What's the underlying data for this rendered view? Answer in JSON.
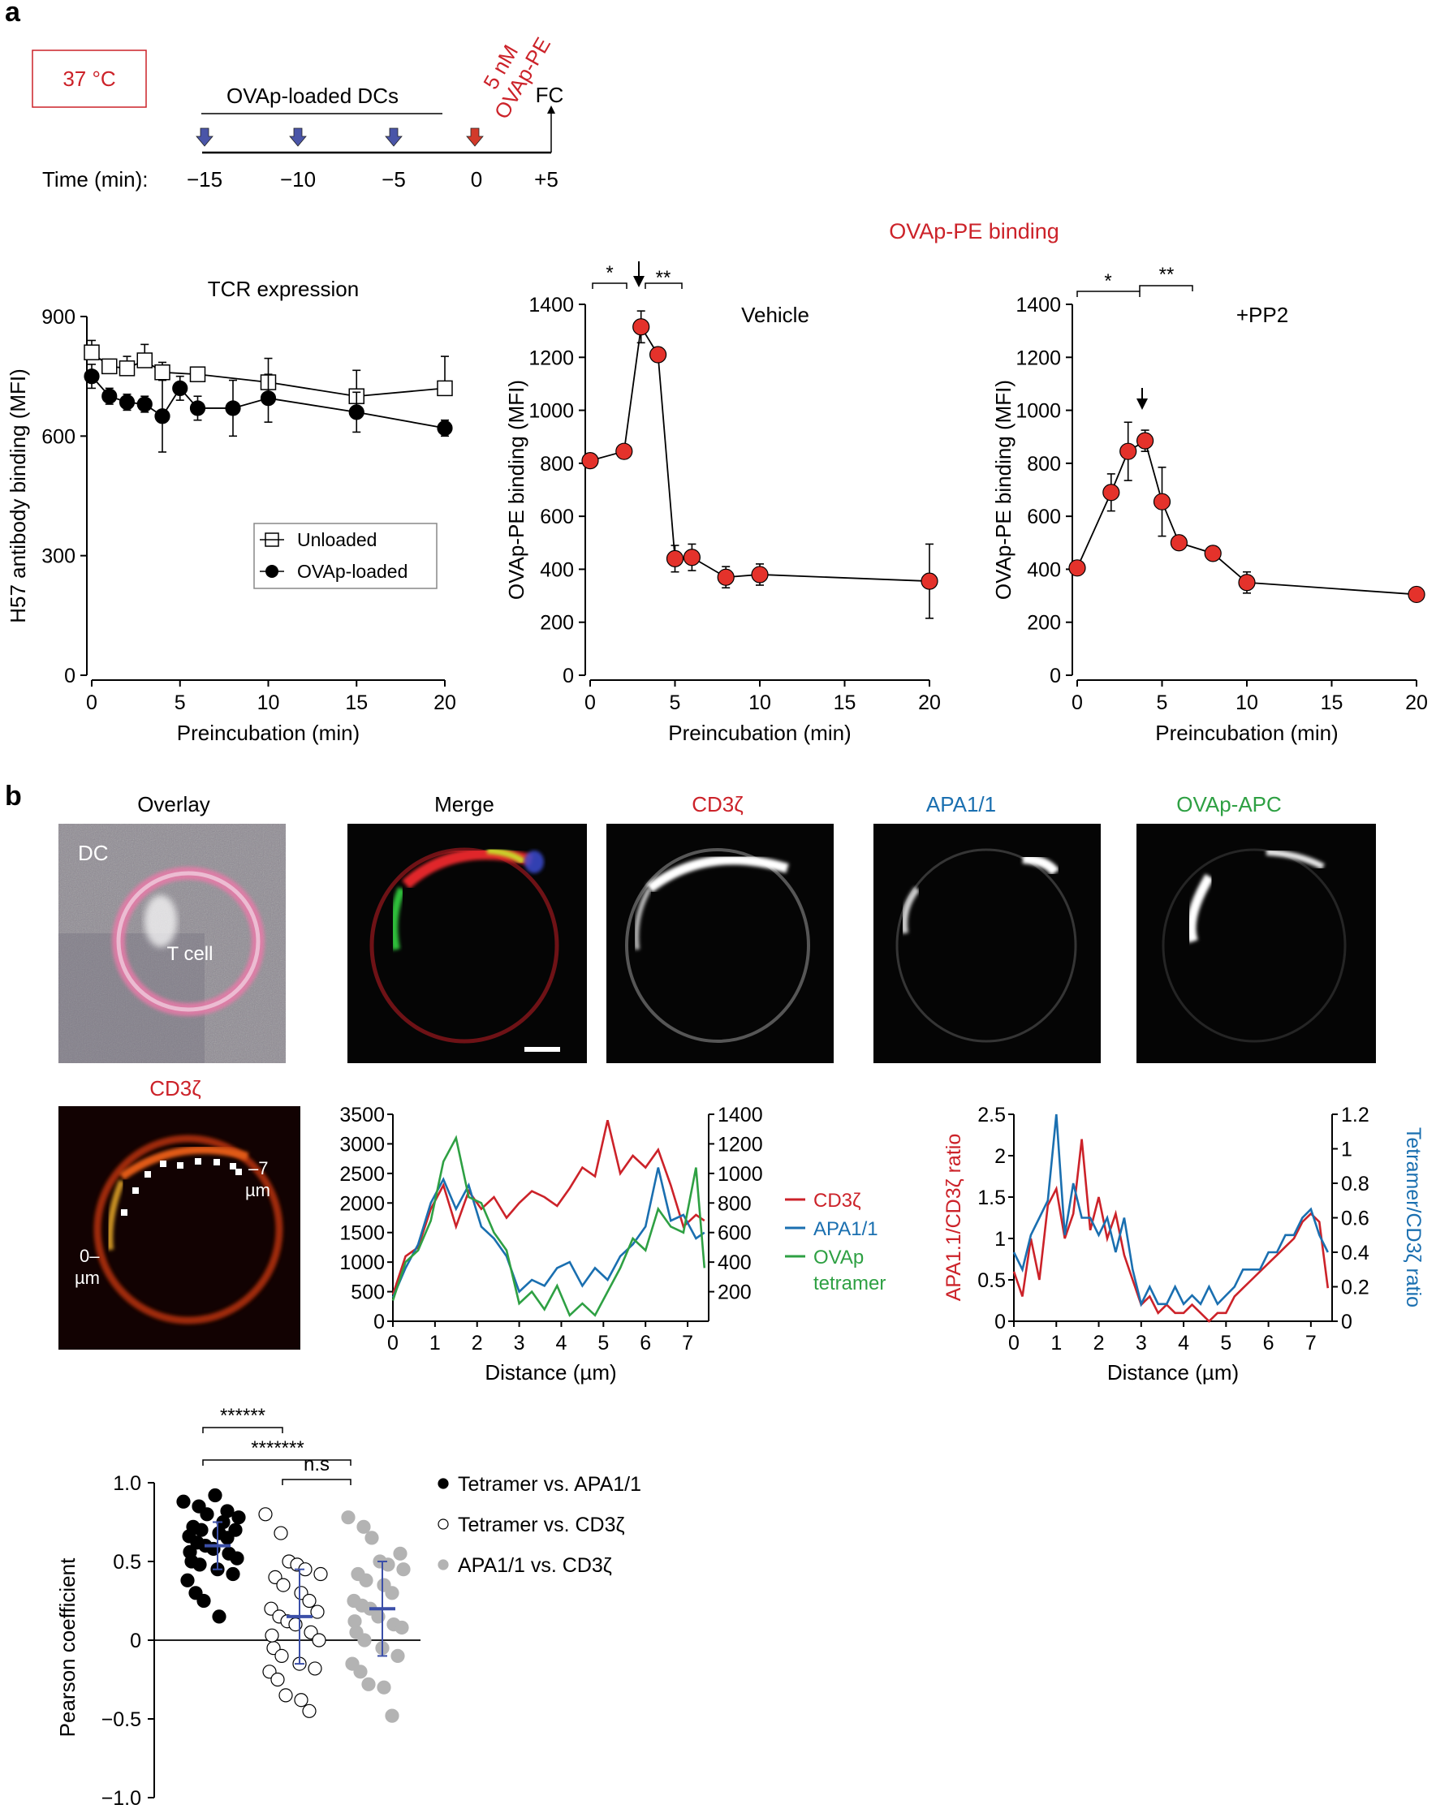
{
  "panel_a": {
    "label": "a",
    "temp_box": "37 °C",
    "dc_label": "OVAp-loaded DCs",
    "pe_label_1": "5 nM",
    "pe_label_2": "OVAp-PE",
    "fc_label": "FC",
    "time_label": "Time (min):",
    "time_ticks": [
      "−15",
      "−10",
      "−5",
      "0",
      "+5"
    ],
    "red_color": "#cc2229",
    "blue_color": "#1a6fb0",
    "green_color": "#2ea043"
  },
  "panel_b": {
    "label": "b",
    "titles": {
      "overlay": "Overlay",
      "merge": "Merge",
      "cd3": "CD3ζ",
      "apa": "APA1/1",
      "ovap": "OVAp-APC",
      "cd3_small": "CD3ζ"
    },
    "overlay_dc": "DC",
    "overlay_tcell": "T cell",
    "um0_a": "0–",
    "um0_b": "µm",
    "um7_a": "–7",
    "um7_b": "µm"
  },
  "chart_data": [
    {
      "id": "tcr",
      "type": "line",
      "title": "TCR expression",
      "xlabel": "Preincubation (min)",
      "ylabel": "H57 antibody binding (MFI)",
      "xlim": [
        0,
        20
      ],
      "ylim": [
        0,
        900
      ],
      "xticks": [
        0,
        5,
        10,
        15,
        20
      ],
      "yticks": [
        0,
        300,
        600,
        900
      ],
      "legend": [
        "Unloaded",
        "OVAp-loaded"
      ],
      "series": [
        {
          "name": "Unloaded",
          "x": [
            0,
            1,
            2,
            3,
            4,
            6,
            10,
            15,
            20
          ],
          "y": [
            810,
            775,
            770,
            790,
            760,
            755,
            735,
            700,
            720
          ],
          "err": [
            30,
            0,
            30,
            40,
            25,
            10,
            60,
            65,
            80
          ]
        },
        {
          "name": "OVAp-loaded",
          "x": [
            0,
            1,
            2,
            3,
            4,
            5,
            6,
            8,
            10,
            15,
            20
          ],
          "y": [
            750,
            700,
            685,
            680,
            650,
            720,
            670,
            670,
            695,
            660,
            620
          ],
          "err": [
            30,
            20,
            20,
            20,
            90,
            30,
            30,
            70,
            60,
            50,
            20
          ]
        }
      ]
    },
    {
      "id": "vehicle",
      "type": "line",
      "title": "OVAp-PE binding",
      "subtitle": "Vehicle",
      "xlabel": "Preincubation (min)",
      "ylabel": "OVAp-PE  binding (MFI)",
      "xlim": [
        0,
        20
      ],
      "ylim": [
        0,
        1400
      ],
      "xticks": [
        0,
        5,
        10,
        15,
        20
      ],
      "yticks": [
        0,
        200,
        400,
        600,
        800,
        1000,
        1200,
        1400
      ],
      "annotations": [
        "*",
        "**"
      ],
      "series": [
        {
          "name": "Vehicle",
          "x": [
            0,
            2,
            3,
            4,
            5,
            6,
            8,
            10,
            20
          ],
          "y": [
            810,
            845,
            1315,
            1210,
            440,
            445,
            370,
            380,
            355
          ],
          "err": [
            20,
            20,
            60,
            10,
            50,
            50,
            40,
            40,
            140
          ]
        }
      ]
    },
    {
      "id": "pp2",
      "type": "line",
      "subtitle": "+PP2",
      "xlabel": "Preincubation (min)",
      "ylabel": "OVAp-PE  binding (MFI)",
      "xlim": [
        0,
        20
      ],
      "ylim": [
        0,
        1400
      ],
      "xticks": [
        0,
        5,
        10,
        15,
        20
      ],
      "yticks": [
        0,
        200,
        400,
        600,
        800,
        1000,
        1200,
        1400
      ],
      "annotations": [
        "*",
        "**"
      ],
      "series": [
        {
          "name": "+PP2",
          "x": [
            0,
            2,
            3,
            4,
            5,
            6,
            8,
            10,
            20
          ],
          "y": [
            405,
            690,
            845,
            885,
            655,
            500,
            460,
            350,
            305
          ],
          "err": [
            10,
            70,
            110,
            40,
            130,
            10,
            10,
            40,
            10
          ]
        }
      ]
    },
    {
      "id": "profile",
      "type": "line",
      "xlabel": "Distance (µm)",
      "xlim": [
        0,
        7.5
      ],
      "ylim_left": [
        0,
        3500
      ],
      "ylim_right": [
        0,
        1400
      ],
      "xticks": [
        0,
        1,
        2,
        3,
        4,
        5,
        6,
        7
      ],
      "yticks_left": [
        0,
        500,
        1000,
        1500,
        2000,
        2500,
        3000,
        3500
      ],
      "yticks_right": [
        200,
        400,
        600,
        800,
        1000,
        1200,
        1400
      ],
      "legend": [
        "CD3ζ",
        "APA1/1",
        "OVAp",
        "tetramer"
      ],
      "series": [
        {
          "name": "CD3ζ",
          "axis": "left",
          "x": [
            0,
            0.3,
            0.6,
            0.9,
            1.2,
            1.5,
            1.8,
            2.1,
            2.4,
            2.7,
            3.0,
            3.3,
            3.6,
            3.9,
            4.2,
            4.5,
            4.8,
            5.1,
            5.4,
            5.7,
            6.0,
            6.3,
            6.6,
            6.9,
            7.2,
            7.4
          ],
          "y": [
            450,
            1100,
            1250,
            1900,
            2300,
            1600,
            2200,
            1900,
            2100,
            1750,
            2000,
            2200,
            2100,
            1950,
            2250,
            2600,
            2450,
            3400,
            2500,
            2800,
            2600,
            2900,
            2300,
            1600,
            1800,
            1700
          ]
        },
        {
          "name": "APA1/1",
          "axis": "left",
          "x": [
            0,
            0.3,
            0.6,
            0.9,
            1.2,
            1.5,
            1.8,
            2.1,
            2.4,
            2.7,
            3.0,
            3.3,
            3.6,
            3.9,
            4.2,
            4.5,
            4.8,
            5.1,
            5.4,
            5.7,
            6.0,
            6.3,
            6.6,
            6.9,
            7.2,
            7.4
          ],
          "y": [
            400,
            900,
            1300,
            2000,
            2400,
            1900,
            2300,
            1600,
            1400,
            1100,
            500,
            700,
            600,
            900,
            1000,
            600,
            900,
            700,
            1100,
            1300,
            1600,
            2600,
            1700,
            1800,
            1400,
            1500
          ]
        },
        {
          "name": "OVAp tetramer",
          "axis": "left",
          "x": [
            0,
            0.3,
            0.6,
            0.9,
            1.2,
            1.5,
            1.8,
            2.1,
            2.4,
            2.7,
            3.0,
            3.3,
            3.6,
            3.9,
            4.2,
            4.5,
            4.8,
            5.1,
            5.4,
            5.7,
            6.0,
            6.3,
            6.6,
            6.9,
            7.2,
            7.4
          ],
          "y": [
            350,
            1000,
            1200,
            1700,
            2700,
            3100,
            2100,
            2000,
            1500,
            1200,
            300,
            500,
            200,
            600,
            100,
            300,
            100,
            500,
            900,
            1400,
            1200,
            1900,
            1600,
            1500,
            2600,
            900
          ]
        }
      ]
    },
    {
      "id": "ratio",
      "type": "line",
      "xlabel": "Distance (µm)",
      "ylabel_left": "APA1.1/CD3ζ ratio",
      "ylabel_right": "Tetramer/CD3ζ ratio",
      "xlim": [
        0,
        7.5
      ],
      "ylim_left": [
        0,
        2.5
      ],
      "ylim_right": [
        0,
        1.2
      ],
      "xticks": [
        0,
        1,
        2,
        3,
        4,
        5,
        6,
        7
      ],
      "yticks_left": [
        0,
        0.5,
        1.0,
        1.5,
        2.0,
        2.5
      ],
      "yticks_right": [
        0,
        0.2,
        0.4,
        0.6,
        0.8,
        1.0,
        1.2
      ],
      "series": [
        {
          "name": "APA1.1/CD3ζ ratio",
          "axis": "left",
          "x": [
            0,
            0.2,
            0.4,
            0.6,
            0.8,
            1.0,
            1.2,
            1.4,
            1.6,
            1.8,
            2.0,
            2.2,
            2.4,
            2.6,
            2.8,
            3.0,
            3.2,
            3.4,
            3.6,
            3.8,
            4.0,
            4.2,
            4.4,
            4.6,
            4.8,
            5.0,
            5.2,
            5.4,
            5.6,
            5.8,
            6.0,
            6.2,
            6.4,
            6.6,
            6.8,
            7.0,
            7.2,
            7.4
          ],
          "y": [
            0.6,
            0.3,
            1.0,
            0.5,
            1.4,
            1.6,
            1.0,
            1.3,
            2.2,
            1.1,
            1.5,
            1.0,
            1.3,
            0.8,
            0.5,
            0.2,
            0.3,
            0.1,
            0.2,
            0.1,
            0.1,
            0.2,
            0.1,
            0.0,
            0.1,
            0.1,
            0.3,
            0.4,
            0.5,
            0.6,
            0.7,
            0.8,
            0.9,
            1.0,
            1.2,
            1.3,
            1.2,
            0.4
          ]
        },
        {
          "name": "Tetramer/CD3ζ ratio",
          "axis": "right",
          "x": [
            0,
            0.2,
            0.4,
            0.6,
            0.8,
            1.0,
            1.2,
            1.4,
            1.6,
            1.8,
            2.0,
            2.2,
            2.4,
            2.6,
            2.8,
            3.0,
            3.2,
            3.4,
            3.6,
            3.8,
            4.0,
            4.2,
            4.4,
            4.6,
            4.8,
            5.0,
            5.2,
            5.4,
            5.6,
            5.8,
            6.0,
            6.2,
            6.4,
            6.6,
            6.8,
            7.0,
            7.2,
            7.4
          ],
          "y": [
            0.4,
            0.3,
            0.5,
            0.6,
            0.7,
            1.2,
            0.5,
            0.8,
            0.6,
            0.6,
            0.5,
            0.6,
            0.4,
            0.6,
            0.3,
            0.1,
            0.2,
            0.1,
            0.1,
            0.2,
            0.1,
            0.15,
            0.1,
            0.2,
            0.1,
            0.15,
            0.2,
            0.3,
            0.3,
            0.3,
            0.4,
            0.4,
            0.5,
            0.5,
            0.6,
            0.65,
            0.5,
            0.4
          ]
        }
      ]
    },
    {
      "id": "pearson",
      "type": "scatter",
      "ylabel": "Pearson coefficient",
      "ylim": [
        -1.0,
        1.0
      ],
      "yticks": [
        "1.0",
        "0.5",
        "0",
        "−0.5",
        "−1.0"
      ],
      "legend": [
        "Tetramer vs. APA1/1",
        "Tetramer vs. CD3ζ",
        "APA1/1 vs. CD3ζ"
      ],
      "significance": [
        "******",
        "*******",
        "n.s"
      ],
      "groups": [
        {
          "name": "Tetramer vs. APA1/1",
          "mean": 0.6,
          "sd": 0.15,
          "values": [
            0.88,
            0.85,
            0.8,
            0.92,
            0.75,
            0.78,
            0.72,
            0.7,
            0.68,
            0.65,
            0.66,
            0.62,
            0.6,
            0.58,
            0.55,
            0.52,
            0.5,
            0.48,
            0.45,
            0.42,
            0.38,
            0.3,
            0.25,
            0.15,
            0.82,
            0.7,
            0.56
          ]
        },
        {
          "name": "Tetramer vs. CD3ζ",
          "mean": 0.15,
          "sd": 0.3,
          "values": [
            0.8,
            0.68,
            0.5,
            0.48,
            0.45,
            0.42,
            0.4,
            0.35,
            0.3,
            0.25,
            0.2,
            0.15,
            0.12,
            0.1,
            0.05,
            0.0,
            -0.05,
            -0.1,
            -0.15,
            -0.18,
            -0.2,
            -0.25,
            -0.35,
            -0.38,
            -0.45,
            0.18,
            0.03
          ]
        },
        {
          "name": "APA1/1 vs. CD3ζ",
          "mean": 0.2,
          "sd": 0.3,
          "values": [
            0.78,
            0.72,
            0.65,
            0.5,
            0.48,
            0.45,
            0.42,
            0.38,
            0.35,
            0.3,
            0.25,
            0.22,
            0.2,
            0.15,
            0.1,
            0.08,
            0.05,
            0.0,
            -0.05,
            -0.1,
            -0.15,
            -0.2,
            -0.28,
            -0.3,
            -0.48,
            0.55,
            0.12
          ]
        }
      ]
    }
  ]
}
